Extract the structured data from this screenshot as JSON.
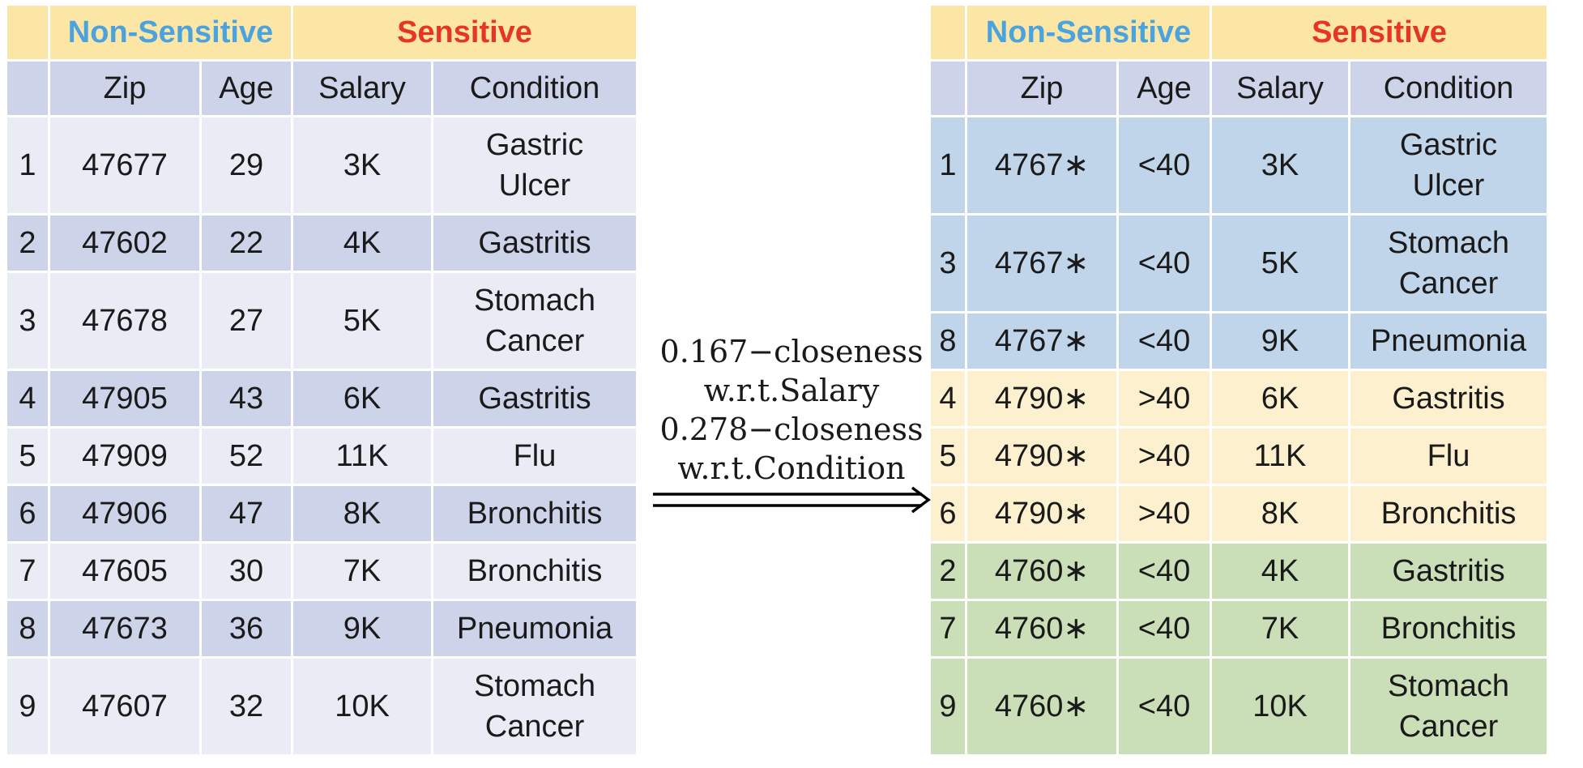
{
  "left_table": {
    "group_headers": {
      "non_sensitive": "Non-Sensitive",
      "sensitive": "Sensitive"
    },
    "columns": {
      "zip": "Zip",
      "age": "Age",
      "salary": "Salary",
      "condition": "Condition"
    },
    "rows": [
      {
        "id": "1",
        "zip": "47677",
        "age": "29",
        "salary": "3K",
        "condition_1": "Gastric",
        "condition_2": "Ulcer"
      },
      {
        "id": "2",
        "zip": "47602",
        "age": "22",
        "salary": "4K",
        "condition_1": "Gastritis",
        "condition_2": ""
      },
      {
        "id": "3",
        "zip": "47678",
        "age": "27",
        "salary": "5K",
        "condition_1": "Stomach",
        "condition_2": "Cancer"
      },
      {
        "id": "4",
        "zip": "47905",
        "age": "43",
        "salary": "6K",
        "condition_1": "Gastritis",
        "condition_2": ""
      },
      {
        "id": "5",
        "zip": "47909",
        "age": "52",
        "salary": "11K",
        "condition_1": "Flu",
        "condition_2": ""
      },
      {
        "id": "6",
        "zip": "47906",
        "age": "47",
        "salary": "8K",
        "condition_1": "Bronchitis",
        "condition_2": ""
      },
      {
        "id": "7",
        "zip": "47605",
        "age": "30",
        "salary": "7K",
        "condition_1": "Bronchitis",
        "condition_2": ""
      },
      {
        "id": "8",
        "zip": "47673",
        "age": "36",
        "salary": "9K",
        "condition_1": "Pneumonia",
        "condition_2": ""
      },
      {
        "id": "9",
        "zip": "47607",
        "age": "32",
        "salary": "10K",
        "condition_1": "Stomach",
        "condition_2": "Cancer"
      }
    ]
  },
  "transform": {
    "line1": "0.167−closeness",
    "line2": "w.r.t.Salary",
    "line3": "0.278−closeness",
    "line4": "w.r.t.Condition"
  },
  "right_table": {
    "group_headers": {
      "non_sensitive": "Non-Sensitive",
      "sensitive": "Sensitive"
    },
    "columns": {
      "zip": "Zip",
      "age": "Age",
      "salary": "Salary",
      "condition": "Condition"
    },
    "rows": [
      {
        "id": "1",
        "zip": "4767∗",
        "age": "<40",
        "salary": "3K",
        "condition_1": "Gastric",
        "condition_2": "Ulcer"
      },
      {
        "id": "3",
        "zip": "4767∗",
        "age": "<40",
        "salary": "5K",
        "condition_1": "Stomach",
        "condition_2": "Cancer"
      },
      {
        "id": "8",
        "zip": "4767∗",
        "age": "<40",
        "salary": "9K",
        "condition_1": "Pneumonia",
        "condition_2": ""
      },
      {
        "id": "4",
        "zip": "4790∗",
        "age": ">40",
        "salary": "6K",
        "condition_1": "Gastritis",
        "condition_2": ""
      },
      {
        "id": "5",
        "zip": "4790∗",
        "age": ">40",
        "salary": "11K",
        "condition_1": "Flu",
        "condition_2": ""
      },
      {
        "id": "6",
        "zip": "4790∗",
        "age": ">40",
        "salary": "8K",
        "condition_1": "Bronchitis",
        "condition_2": ""
      },
      {
        "id": "2",
        "zip": "4760∗",
        "age": "<40",
        "salary": "4K",
        "condition_1": "Gastritis",
        "condition_2": ""
      },
      {
        "id": "7",
        "zip": "4760∗",
        "age": "<40",
        "salary": "7K",
        "condition_1": "Bronchitis",
        "condition_2": ""
      },
      {
        "id": "9",
        "zip": "4760∗",
        "age": "<40",
        "salary": "10K",
        "condition_1": "Stomach",
        "condition_2": "Cancer"
      }
    ]
  },
  "colors": {
    "header_fill": "#fbe6a6",
    "non_sensitive_text": "#4aa3df",
    "sensitive_text": "#e53523",
    "group_blue": "#c0d4ea",
    "group_yellow": "#fdf0cf",
    "group_green": "#cadfb8"
  }
}
